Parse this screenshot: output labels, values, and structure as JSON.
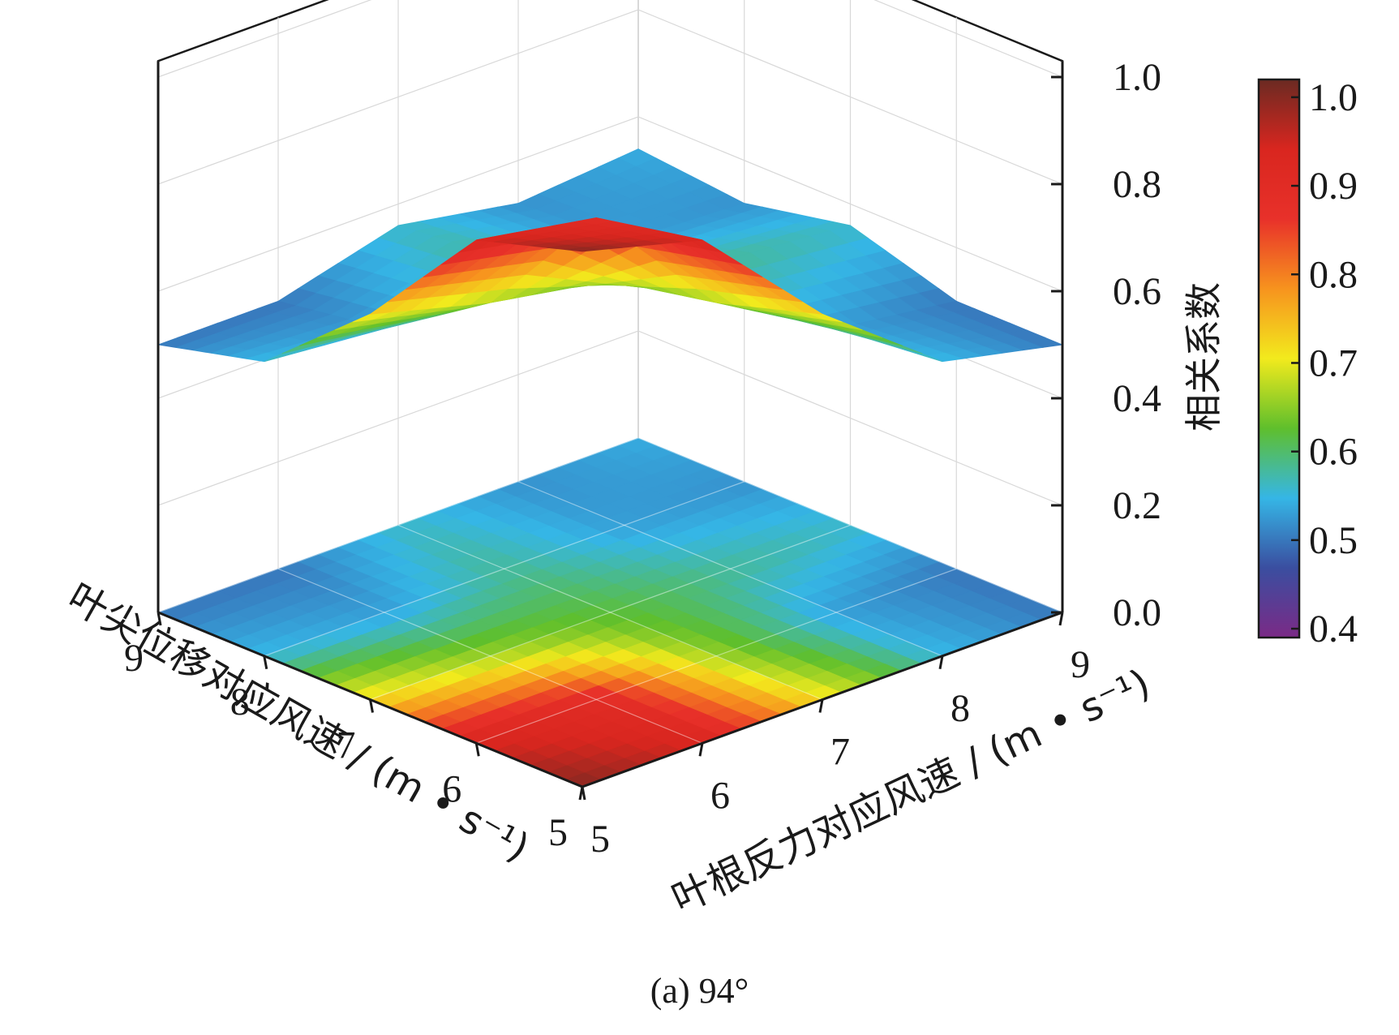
{
  "chart_data": {
    "type": "surface3d",
    "title": "",
    "caption": "(a) 94°",
    "x_axis": {
      "label": "叶尖位移对应风速 / (m • s⁻¹)",
      "ticks": [
        9,
        8,
        7,
        6,
        5
      ]
    },
    "y_axis": {
      "label": "叶根反力对应风速 / (m • s⁻¹)",
      "ticks": [
        5,
        6,
        7,
        8,
        9
      ]
    },
    "z_axis": {
      "label": "相关系数",
      "ticks": [
        "0.0",
        "0.2",
        "0.4",
        "0.6",
        "0.8",
        "1.0"
      ],
      "range": [
        0,
        1
      ]
    },
    "colorbar": {
      "ticks": [
        "0.4",
        "0.5",
        "0.6",
        "0.7",
        "0.8",
        "0.9",
        "1.0"
      ],
      "range": [
        0.39,
        1.02
      ],
      "colors": [
        "#7b2a86",
        "#3a4ea0",
        "#35b6e6",
        "#5fbf2c",
        "#f2ea1d",
        "#f7931e",
        "#e8312a",
        "#d9261f",
        "#6b2a22"
      ]
    },
    "x_values": [
      5,
      6,
      7,
      8,
      9
    ],
    "y_values": [
      5,
      6,
      7,
      8,
      9
    ],
    "z_matrix_note": "",
    "z_matrix": [
      [
        1.0,
        0.94,
        0.72,
        0.55,
        0.5
      ],
      [
        0.94,
        0.9,
        0.66,
        0.53,
        0.5
      ],
      [
        0.72,
        0.66,
        0.62,
        0.58,
        0.56
      ],
      [
        0.55,
        0.53,
        0.58,
        0.53,
        0.52
      ],
      [
        0.5,
        0.5,
        0.56,
        0.52,
        0.54
      ]
    ]
  }
}
